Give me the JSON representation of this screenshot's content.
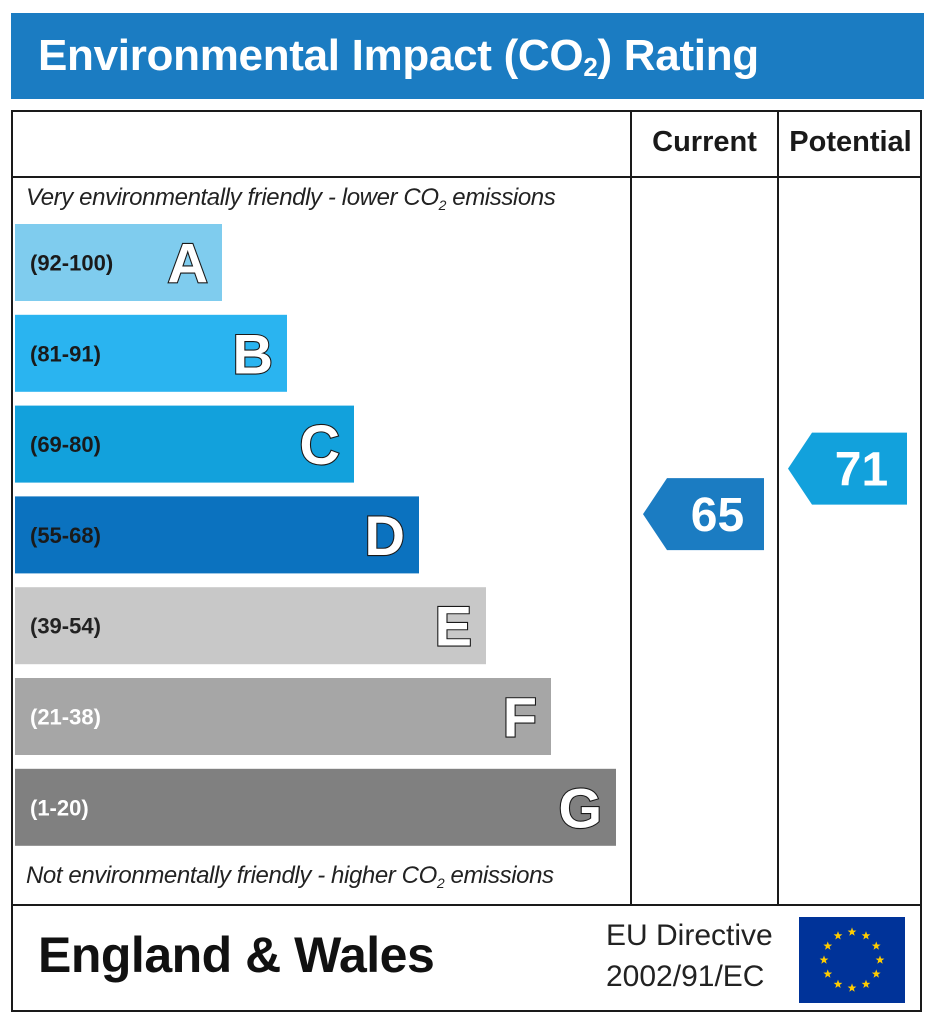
{
  "title": {
    "main": "Environmental Impact (CO",
    "sub": "2",
    "end": ") Rating"
  },
  "columns": {
    "current": "Current",
    "potential": "Potential"
  },
  "notes": {
    "top": {
      "main": "Very environmentally friendly - lower CO",
      "sub": "2",
      "end": " emissions"
    },
    "bottom": {
      "main": "Not environmentally friendly - higher CO",
      "sub": "2",
      "end": " emissions"
    }
  },
  "chart_data": {
    "type": "bar",
    "title": "Environmental Impact (CO2) Rating",
    "categories": [
      "A",
      "B",
      "C",
      "D",
      "E",
      "F",
      "G"
    ],
    "ranges": [
      "(92-100)",
      "(81-91)",
      "(69-80)",
      "(55-68)",
      "(39-54)",
      "(21-38)",
      "(1-20)"
    ],
    "colors": [
      "#7fccee",
      "#2ab4f0",
      "#12a1dc",
      "#0b72bf",
      "#c8c8c8",
      "#a6a6a6",
      "#808080"
    ],
    "current": {
      "value": 65,
      "band": "D",
      "color": "#1b7cc2"
    },
    "potential": {
      "value": 71,
      "band": "C",
      "color": "#12a1dc"
    }
  },
  "footer": {
    "region": "England & Wales",
    "directive_line1": "EU Directive",
    "directive_line2": "2002/91/EC",
    "flag_colors": {
      "background": "#003399",
      "stars": "#ffcc00"
    }
  }
}
